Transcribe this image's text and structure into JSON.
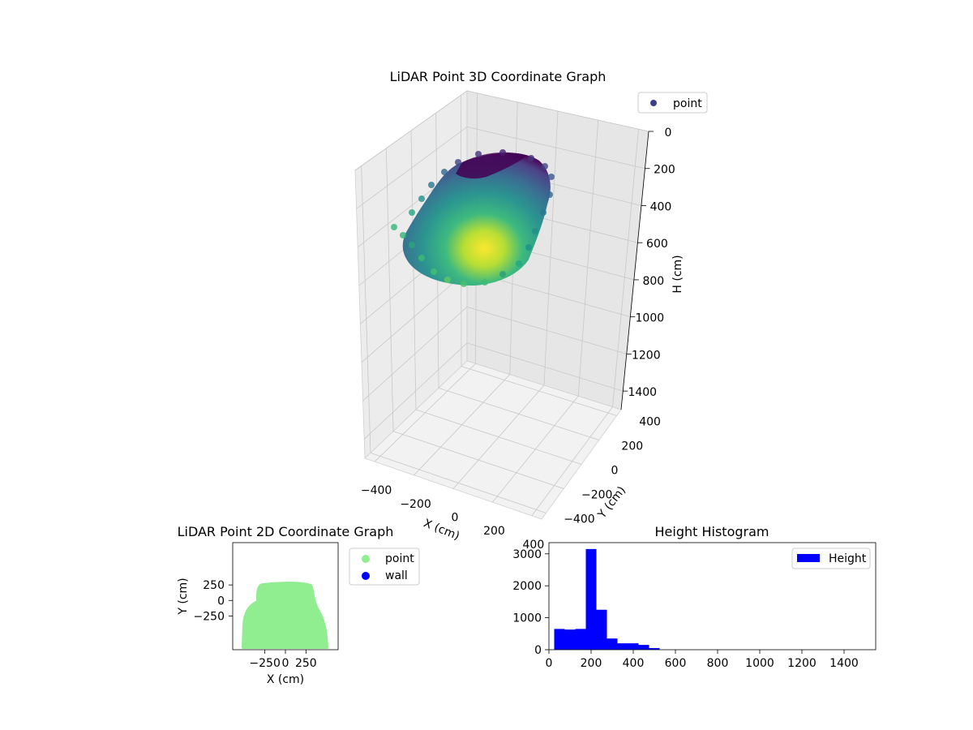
{
  "chart_data": [
    {
      "type": "scatter",
      "projection": "3d",
      "title": "LiDAR Point 3D Coordinate Graph",
      "xlabel": "X (cm)",
      "ylabel": "Y (cm)",
      "zlabel": "H (cm)",
      "x_ticks": [
        "−400",
        "−200",
        "0",
        "200",
        "400"
      ],
      "y_ticks": [
        "−400",
        "−200",
        "0",
        "200",
        "400"
      ],
      "z_ticks": [
        "0",
        "200",
        "400",
        "600",
        "800",
        "1000",
        "1200",
        "1400"
      ],
      "xlim": [
        -450,
        450
      ],
      "ylim": [
        -450,
        450
      ],
      "zlim": [
        0,
        1500
      ],
      "z_inverted": true,
      "colormap": "viridis",
      "legend": [
        {
          "label": "point",
          "color": "#3d3d86"
        }
      ],
      "legend_position": "upper-right",
      "grid": true
    },
    {
      "type": "scatter",
      "title": "LiDAR Point 2D Coordinate Graph",
      "xlabel": "X (cm)",
      "ylabel": "Y (cm)",
      "x_ticks": [
        "−250",
        "0",
        "250"
      ],
      "y_ticks": [
        "250",
        "0",
        "−250"
      ],
      "xlim": [
        -500,
        500
      ],
      "ylim": [
        -500,
        500
      ],
      "series": [
        {
          "name": "point",
          "color": "#90ee90",
          "region_x": [
            -400,
            400
          ],
          "region_y": [
            -480,
            100
          ]
        },
        {
          "name": "wall",
          "color": "#0000ff",
          "region_x": [],
          "region_y": []
        }
      ],
      "legend_position": "outside-right",
      "grid": false
    },
    {
      "type": "bar",
      "subtype": "histogram",
      "title": "Height Histogram",
      "x_ticks": [
        "0",
        "200",
        "400",
        "600",
        "800",
        "1000",
        "1200",
        "1400"
      ],
      "y_ticks": [
        "0",
        "1000",
        "2000",
        "3000"
      ],
      "xlim": [
        0,
        1550
      ],
      "ylim": [
        0,
        3350
      ],
      "bin_width": 50,
      "bin_start": 25,
      "values": [
        650,
        630,
        650,
        3150,
        1250,
        350,
        200,
        200,
        150,
        50
      ],
      "color": "#0000ff",
      "legend": [
        {
          "label": "Height",
          "color": "#0000ff"
        }
      ],
      "legend_position": "upper-right",
      "grid": false
    }
  ]
}
